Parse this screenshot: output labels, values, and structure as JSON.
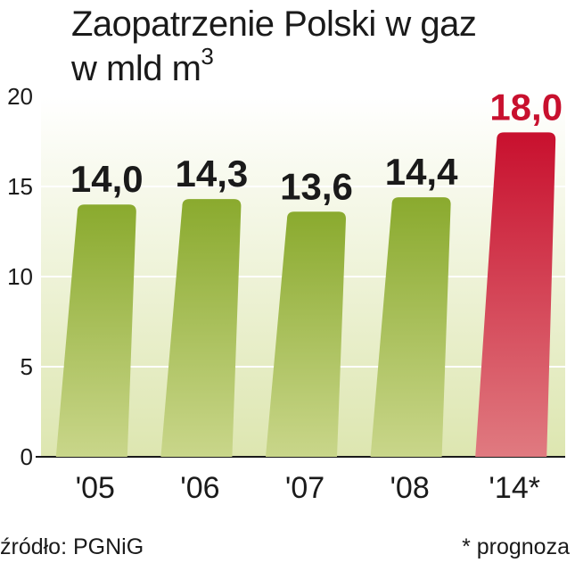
{
  "title_line1": "Zaopatrzenie Polski w gaz",
  "title_line2": "w mld m",
  "title_superscript": "3",
  "source": "źródło: PGNiG",
  "footnote": "* prognoza",
  "colors": {
    "actual_top": "#8aaa2e",
    "actual_bottom": "#c9d68a",
    "forecast_top": "#c8102e",
    "forecast_bottom": "#e07a80",
    "forecast_label": "#c8102e",
    "background_top": "#ffffff",
    "background_bottom": "#dde6b0"
  },
  "chart_data": {
    "type": "bar",
    "categories": [
      "'05",
      "'06",
      "'07",
      "'08",
      "'14*"
    ],
    "values": [
      14.0,
      14.3,
      13.6,
      14.4,
      18.0
    ],
    "value_labels": [
      "14,0",
      "14,3",
      "13,6",
      "14,4",
      "18,0"
    ],
    "forecast": [
      false,
      false,
      false,
      false,
      true
    ],
    "title": "Zaopatrzenie Polski w gaz",
    "ylabel": "w mld m3",
    "xlabel": "",
    "ylim": [
      0,
      20
    ],
    "yticks": [
      0,
      5,
      10,
      15,
      20
    ],
    "grid": true
  }
}
